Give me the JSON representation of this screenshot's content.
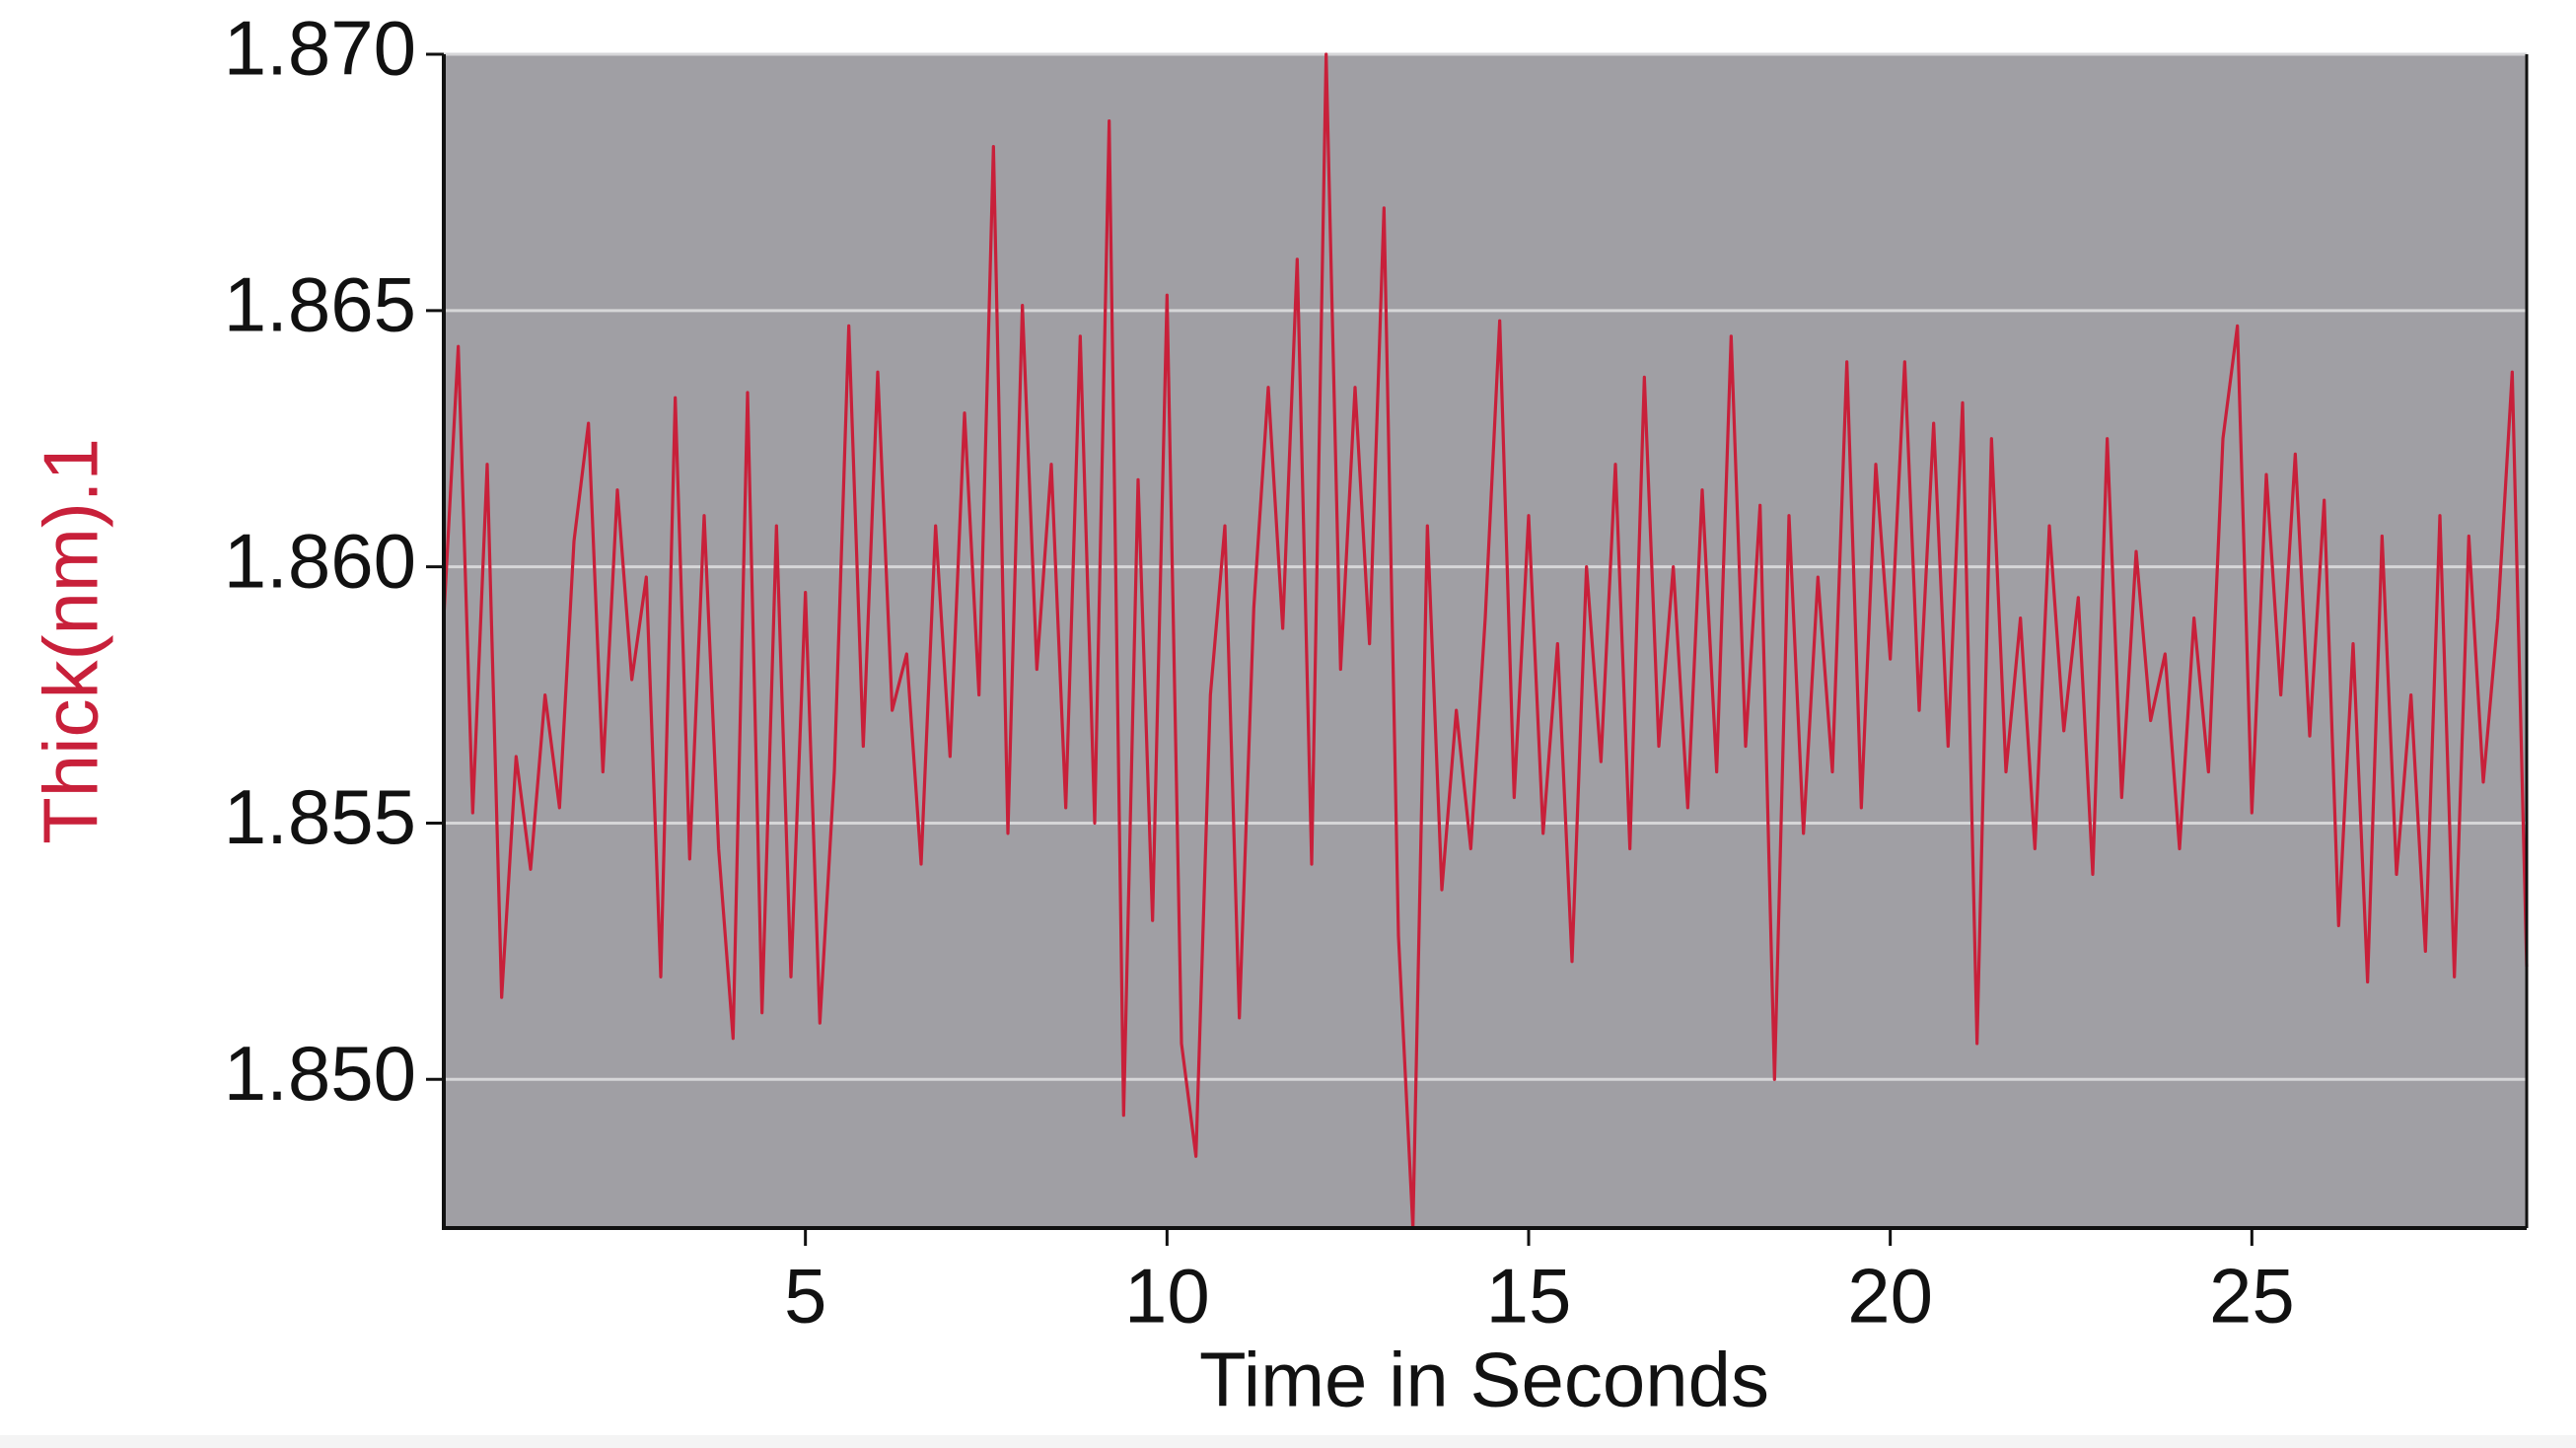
{
  "chart_data": {
    "type": "line",
    "xlabel": "Time in Seconds",
    "ylabel": "Thick(nm).1",
    "color": "#c8203a",
    "x": [
      0,
      0.2,
      0.4,
      0.6,
      0.8,
      1,
      1.2,
      1.4,
      1.6,
      1.8,
      2,
      2.2,
      2.4,
      2.6,
      2.8,
      3,
      3.2,
      3.4,
      3.6,
      3.8,
      4,
      4.2,
      4.4,
      4.6,
      4.8,
      5,
      5.2,
      5.4,
      5.6,
      5.8,
      6,
      6.2,
      6.4,
      6.6,
      6.8,
      7,
      7.2,
      7.4,
      7.6,
      7.8,
      8,
      8.2,
      8.4,
      8.6,
      8.8,
      9,
      9.2,
      9.4,
      9.6,
      9.8,
      10,
      10.2,
      10.4,
      10.6,
      10.8,
      11,
      11.2,
      11.4,
      11.6,
      11.8,
      12,
      12.2,
      12.4,
      12.6,
      12.8,
      13,
      13.2,
      13.4,
      13.6,
      13.8,
      14,
      14.2,
      14.4,
      14.6,
      14.8,
      15,
      15.2,
      15.4,
      15.6,
      15.8,
      16,
      16.2,
      16.4,
      16.6,
      16.8,
      17,
      17.2,
      17.4,
      17.6,
      17.8,
      18,
      18.2,
      18.4,
      18.6,
      18.8,
      19,
      19.2,
      19.4,
      19.6,
      19.8,
      20,
      20.2,
      20.4,
      20.6,
      20.8,
      21,
      21.2,
      21.4,
      21.6,
      21.8,
      22,
      22.2,
      22.4,
      22.6,
      22.8,
      23,
      23.2,
      23.4,
      23.6,
      23.8,
      24,
      24.2,
      24.4,
      24.6,
      24.8,
      25,
      25.2,
      25.4,
      25.6,
      25.8,
      26,
      26.2,
      26.4,
      26.6,
      26.8,
      27,
      27.2,
      27.4,
      27.6,
      27.8,
      28,
      28.2,
      28.4,
      28.6,
      28.8
    ],
    "values": [
      1.859,
      1.8643,
      1.8552,
      1.862,
      1.8516,
      1.8563,
      1.8541,
      1.8575,
      1.8553,
      1.8605,
      1.8628,
      1.856,
      1.8615,
      1.8578,
      1.8598,
      1.852,
      1.8633,
      1.8543,
      1.861,
      1.8545,
      1.8508,
      1.8634,
      1.8513,
      1.8608,
      1.852,
      1.8595,
      1.8511,
      1.856,
      1.8647,
      1.8565,
      1.8638,
      1.8572,
      1.8583,
      1.8542,
      1.8608,
      1.8563,
      1.863,
      1.8575,
      1.8682,
      1.8548,
      1.8651,
      1.858,
      1.862,
      1.8553,
      1.8645,
      1.855,
      1.8687,
      1.8493,
      1.8617,
      1.8531,
      1.8653,
      1.8507,
      1.8485,
      1.8575,
      1.8608,
      1.8512,
      1.8592,
      1.8635,
      1.8588,
      1.866,
      1.8542,
      1.87,
      1.858,
      1.8635,
      1.8585,
      1.867,
      1.8528,
      1.8471,
      1.8608,
      1.8537,
      1.8572,
      1.8545,
      1.859,
      1.8648,
      1.8555,
      1.861,
      1.8548,
      1.8585,
      1.8523,
      1.86,
      1.8562,
      1.862,
      1.8545,
      1.8637,
      1.8565,
      1.86,
      1.8553,
      1.8615,
      1.856,
      1.8645,
      1.8565,
      1.8612,
      1.85,
      1.861,
      1.8548,
      1.8598,
      1.856,
      1.864,
      1.8553,
      1.862,
      1.8582,
      1.864,
      1.8572,
      1.8628,
      1.8565,
      1.8632,
      1.8507,
      1.8625,
      1.856,
      1.859,
      1.8545,
      1.8608,
      1.8568,
      1.8594,
      1.854,
      1.8625,
      1.8555,
      1.8603,
      1.857,
      1.8583,
      1.8545,
      1.859,
      1.856,
      1.8625,
      1.8647,
      1.8552,
      1.8618,
      1.8575,
      1.8622,
      1.8567,
      1.8613,
      1.853,
      1.8585,
      1.8519,
      1.8606,
      1.854,
      1.8575,
      1.8525,
      1.861,
      1.852,
      1.8606,
      1.8558,
      1.859,
      1.8638,
      1.8522
    ],
    "xlim": [
      0,
      28.8
    ],
    "ylim": [
      1.8471,
      1.87
    ],
    "xticks": [
      5,
      10,
      15,
      20,
      25
    ],
    "yticks": [
      {
        "value": 1.85,
        "label": "1.850"
      },
      1.855,
      {
        "value": 1.86,
        "label": "1.860"
      },
      1.865,
      {
        "value": 1.87,
        "label": "1.870"
      }
    ],
    "grid": true
  }
}
